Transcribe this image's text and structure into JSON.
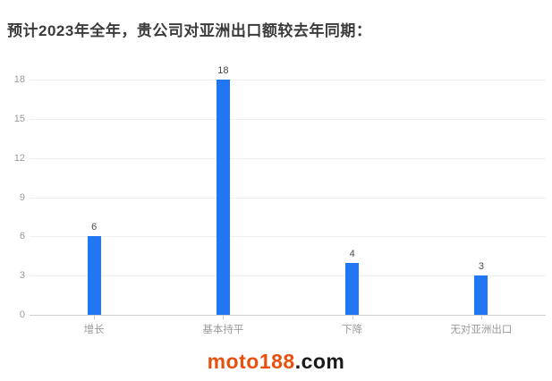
{
  "page": {
    "title": "预计2023年全年，贵公司对亚洲出口额较去年同期："
  },
  "chart_data": {
    "type": "bar",
    "title": "预计2023年全年，贵公司对亚洲出口额较去年同期：",
    "categories": [
      "增长",
      "基本持平",
      "下降",
      "无对亚洲出口"
    ],
    "values": [
      6,
      18,
      4,
      3
    ],
    "xlabel": "",
    "ylabel": "",
    "ylim": [
      0,
      18
    ],
    "yticks": [
      0,
      3,
      6,
      9,
      12,
      15,
      18
    ],
    "grid": true,
    "legend_position": "none",
    "bar_color": "#2177f3",
    "value_labels_shown": true
  },
  "watermark": {
    "brand": "moto188",
    "suffix": ".com",
    "brand_color": "#e8500e",
    "suffix_color": "#1a1a1a"
  },
  "colors": {
    "title_text": "#3b3b3b",
    "grid_line": "#efefef",
    "axis_line": "#cfcfcf",
    "tick_label": "#9a9a9a",
    "value_label": "#4a4a4a",
    "background": "#ffffff"
  }
}
